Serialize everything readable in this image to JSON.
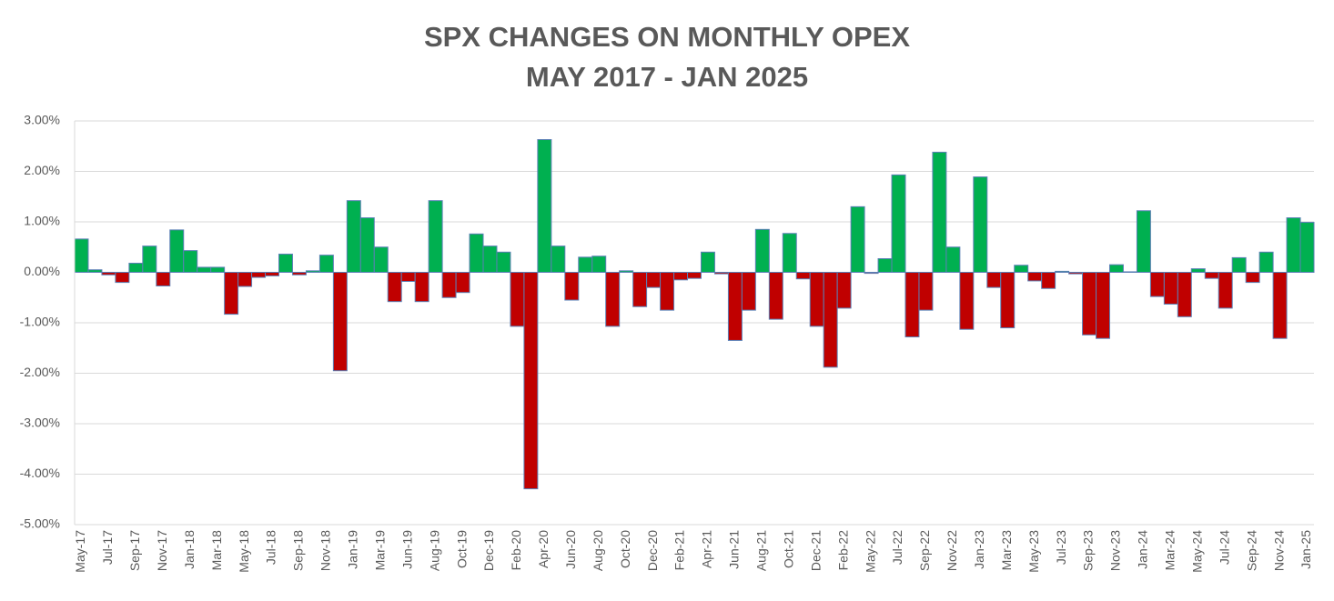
{
  "chart_data": {
    "type": "bar",
    "title": "SPX CHANGES ON MONTHLY OPEX",
    "subtitle": "MAY 2017 - JAN 2025",
    "categories": [
      "May-17",
      null,
      "Jul-17",
      null,
      "Sep-17",
      null,
      "Nov-17",
      null,
      "Jan-18",
      null,
      "Mar-18",
      null,
      "May-18",
      null,
      "Jul-18",
      null,
      "Sep-18",
      null,
      "Nov-18",
      null,
      "Jan-19",
      null,
      "Mar-19",
      null,
      "Jun-19",
      null,
      "Aug-19",
      null,
      "Oct-19",
      null,
      "Dec-19",
      null,
      "Feb-20",
      null,
      "Apr-20",
      null,
      "Jun-20",
      null,
      "Aug-20",
      null,
      "Oct-20",
      null,
      "Dec-20",
      null,
      "Feb-21",
      null,
      "Apr-21",
      null,
      "Jun-21",
      null,
      "Aug-21",
      null,
      "Oct-21",
      null,
      "Dec-21",
      null,
      "Feb-22",
      null,
      "May-22",
      null,
      "Jul-22",
      null,
      "Sep-22",
      null,
      "Nov-22",
      null,
      "Jan-23",
      null,
      "Mar-23",
      null,
      "May-23",
      null,
      "Jul-23",
      null,
      "Sep-23",
      null,
      "Nov-23",
      null,
      "Jan-24",
      null,
      "Mar-24",
      null,
      "May-24",
      null,
      "Jul-24",
      null,
      "Sep-24",
      null,
      "Nov-24",
      null,
      "Jan-25"
    ],
    "values": [
      0.66,
      0.05,
      -0.05,
      -0.2,
      0.18,
      0.52,
      -0.27,
      0.84,
      0.43,
      0.1,
      0.1,
      -0.83,
      -0.28,
      -0.1,
      -0.07,
      0.36,
      -0.05,
      0.03,
      0.34,
      -1.95,
      1.42,
      1.08,
      0.5,
      -0.58,
      -0.18,
      -0.58,
      1.42,
      -0.5,
      -0.4,
      0.76,
      0.52,
      0.4,
      -1.07,
      -4.29,
      2.63,
      0.52,
      -0.55,
      0.3,
      0.32,
      -1.07,
      0.03,
      -0.68,
      -0.3,
      -0.75,
      -0.15,
      -0.12,
      0.4,
      -0.03,
      -1.35,
      -0.75,
      0.85,
      -0.93,
      0.77,
      -0.13,
      -1.07,
      -1.88,
      -0.71,
      1.3,
      -0.02,
      0.27,
      1.93,
      -1.28,
      -0.75,
      2.38,
      0.5,
      -1.13,
      1.89,
      -0.3,
      -1.1,
      0.14,
      -0.17,
      -0.32,
      0.02,
      -0.03,
      -1.24,
      -1.31,
      0.15,
      0.01,
      1.22,
      -0.48,
      -0.63,
      -0.88,
      0.07,
      -0.12,
      -0.71,
      0.29,
      -0.2,
      0.4,
      -1.31,
      1.08,
      0.99
    ],
    "colors": {
      "positive": "#00b050",
      "negative": "#c00000"
    },
    "bar_edge_color": "#5b7fb5",
    "ylim": [
      -5,
      3
    ],
    "yticks": [
      {
        "value": -5,
        "label": "-5.00%"
      },
      {
        "value": -4,
        "label": "-4.00%"
      },
      {
        "value": -3,
        "label": "-3.00%"
      },
      {
        "value": -2,
        "label": "-2.00%"
      },
      {
        "value": -1,
        "label": "-1.00%"
      },
      {
        "value": 0,
        "label": "0.00%"
      },
      {
        "value": 1,
        "label": "1.00%"
      },
      {
        "value": 2,
        "label": "2.00%"
      },
      {
        "value": 3,
        "label": "3.00%"
      }
    ],
    "grid": true
  }
}
